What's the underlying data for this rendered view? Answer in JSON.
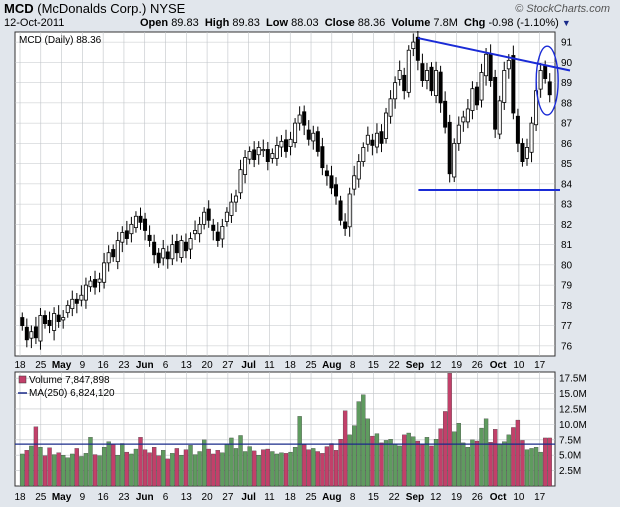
{
  "header": {
    "symbol": "MCD",
    "name": "(McDonalds Corp.)",
    "exchange": "NYSE",
    "date": "12-Oct-2011",
    "open_label": "Open",
    "open": "89.83",
    "high_label": "High",
    "high": "89.83",
    "low_label": "Low",
    "low": "88.03",
    "close_label": "Close",
    "close": "88.36",
    "volume_label": "Volume",
    "volume": "7.8M",
    "chg_label": "Chg",
    "chg": "-0.98 (-1.10%)",
    "logo": "© StockCharts.com"
  },
  "chart_data": [
    {
      "type": "candlestick",
      "legend": "MCD (Daily) 88.36",
      "ylim": [
        75.5,
        91.5
      ],
      "y_ticks": [
        76,
        77,
        78,
        79,
        80,
        81,
        82,
        83,
        84,
        85,
        86,
        87,
        88,
        89,
        90,
        91
      ],
      "x_tick_labels": [
        "18",
        "25",
        "May",
        "9",
        "16",
        "23",
        "Jun",
        "6",
        "13",
        "20",
        "27",
        "Jul",
        "11",
        "18",
        "25",
        "Aug",
        "8",
        "15",
        "22",
        "Sep",
        "12",
        "19",
        "26",
        "Oct",
        "10",
        "17"
      ],
      "closes": [
        77.0,
        76.3,
        76.7,
        76.4,
        77.5,
        77.1,
        77.0,
        77.6,
        77.2,
        77.4,
        78.0,
        78.3,
        78.1,
        78.5,
        79.0,
        79.2,
        78.9,
        79.3,
        80.1,
        80.6,
        80.4,
        81.2,
        81.6,
        81.3,
        82.0,
        82.4,
        82.1,
        81.7,
        81.2,
        80.5,
        80.1,
        80.8,
        80.3,
        81.0,
        80.6,
        81.2,
        80.7,
        81.3,
        81.7,
        82.0,
        82.6,
        82.2,
        81.7,
        81.2,
        81.9,
        82.6,
        83.1,
        83.4,
        84.7,
        85.3,
        85.6,
        85.2,
        85.8,
        85.7,
        85.1,
        85.5,
        85.9,
        86.1,
        85.6,
        86.2,
        87.0,
        87.4,
        86.9,
        86.2,
        86.5,
        85.6,
        84.8,
        84.4,
        83.8,
        83.4,
        82.2,
        81.8,
        83.5,
        84.4,
        85.1,
        85.8,
        86.4,
        85.9,
        86.5,
        86.0,
        87.5,
        88.2,
        89.0,
        89.6,
        88.6,
        90.6,
        91.0,
        90.1,
        89.1,
        89.6,
        88.6,
        89.6,
        88.0,
        86.8,
        84.5,
        86.0,
        86.9,
        87.3,
        87.7,
        88.7,
        87.9,
        89.5,
        90.4,
        89.1,
        86.7,
        88.1,
        89.6,
        90.1,
        87.5,
        86.0,
        85.1,
        85.8,
        87.0,
        88.6,
        89.6,
        89.2,
        88.4
      ],
      "support": 83.7,
      "resistance_start": 91.2,
      "resistance_end": 89.6
    },
    {
      "type": "bar",
      "legend": "Volume 7,847,898",
      "ma_legend": "MA(250) 6,824,120",
      "ylim": [
        0,
        18.5
      ],
      "y_ticks": [
        "2.5M",
        "5.0M",
        "7.5M",
        "10.0M",
        "12.5M",
        "15.0M",
        "17.5M"
      ],
      "y_tick_values": [
        2.5,
        5,
        7.5,
        10,
        12.5,
        15,
        17.5
      ],
      "ma_value": 6.8,
      "values": [
        5.2,
        5.8,
        6.5,
        9.6,
        6.3,
        4.9,
        6.2,
        5.1,
        5.4,
        5.0,
        4.6,
        5.2,
        6.1,
        4.8,
        5.3,
        7.9,
        5.1,
        4.9,
        6.3,
        7.2,
        6.8,
        5.0,
        6.9,
        5.5,
        5.2,
        6.0,
        7.9,
        5.9,
        5.4,
        6.3,
        4.9,
        5.8,
        4.4,
        5.3,
        6.1,
        5.0,
        5.9,
        6.6,
        5.1,
        5.6,
        7.5,
        6.0,
        5.2,
        5.8,
        5.4,
        6.8,
        7.8,
        6.1,
        8.2,
        5.6,
        6.4,
        5.7,
        5.0,
        5.9,
        6.0,
        5.6,
        5.2,
        5.4,
        5.3,
        5.5,
        6.3,
        11.3,
        6.7,
        5.9,
        6.1,
        5.6,
        5.3,
        6.4,
        6.9,
        5.8,
        7.6,
        12.2,
        8.3,
        9.8,
        13.7,
        14.8,
        10.9,
        8.1,
        8.5,
        7.0,
        7.4,
        7.6,
        6.8,
        6.5,
        8.3,
        8.6,
        8.0,
        7.3,
        6.7,
        7.9,
        6.5,
        7.6,
        9.3,
        12.1,
        18.3,
        8.8,
        10.2,
        7.0,
        6.3,
        7.5,
        7.3,
        9.4,
        10.9,
        7.1,
        9.2,
        6.8,
        7.2,
        8.3,
        9.5,
        10.7,
        7.4,
        5.9,
        6.1,
        6.3,
        5.5,
        7.8,
        7.8
      ],
      "up_color": "#5f9b5f",
      "down_color": "#c2406a"
    }
  ],
  "colors": {
    "background": "#e1e6ec",
    "plot_bg": "#ffffff",
    "grid": "#c0c4c8",
    "trendline": "#1a2bd6",
    "ma_line": "#1a2b8a"
  }
}
